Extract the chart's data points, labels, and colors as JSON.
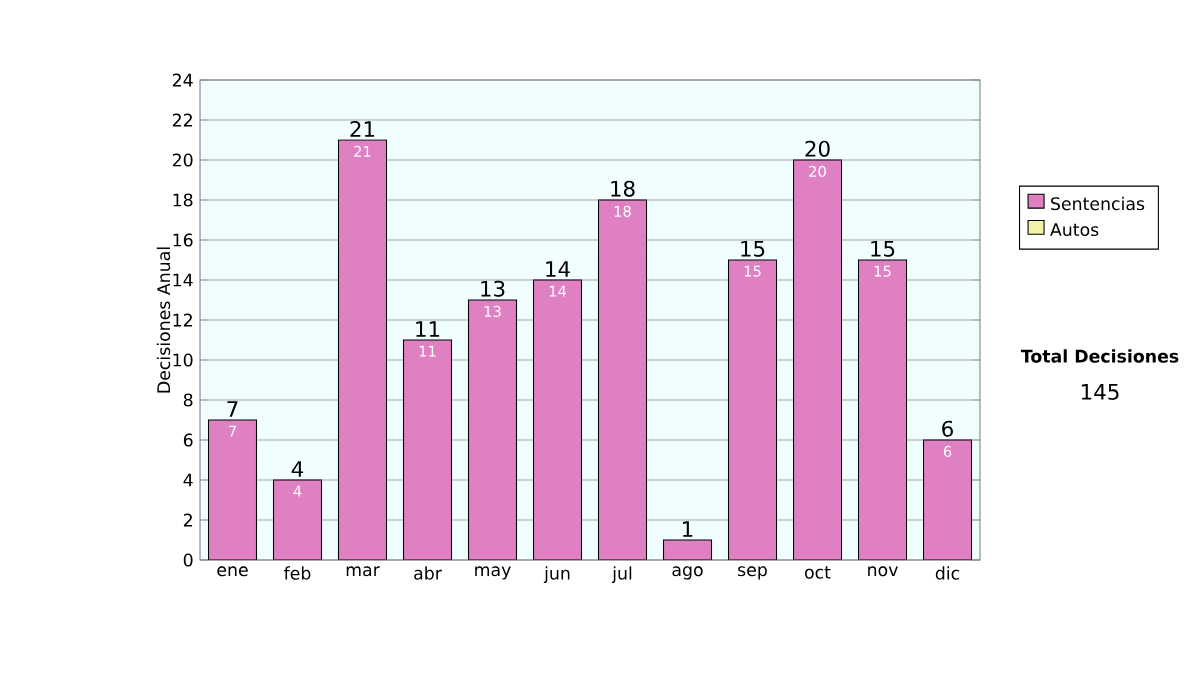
{
  "chart_data": {
    "type": "bar",
    "ylabel": "Decisiones Anual",
    "categories": [
      "ene",
      "feb",
      "mar",
      "abr",
      "may",
      "jun",
      "jul",
      "ago",
      "sep",
      "oct",
      "nov",
      "dic"
    ],
    "series": [
      {
        "name": "Sentencias",
        "color": "#df80c2",
        "values": [
          7,
          4,
          21,
          11,
          13,
          14,
          18,
          1,
          15,
          20,
          15,
          6
        ],
        "value_labels": [
          "7",
          "4",
          "21",
          "11",
          "13",
          "14",
          "18",
          null,
          "15",
          "20",
          "15",
          "6"
        ]
      },
      {
        "name": "Autos",
        "color": "#f2f2a6",
        "values": [
          null,
          null,
          null,
          null,
          null,
          null,
          null,
          null,
          null,
          null,
          null,
          null
        ]
      }
    ],
    "stacked": true,
    "totals": [
      "7",
      "4",
      "21",
      "11",
      "13",
      "14",
      "18",
      "1",
      "15",
      "20",
      "15",
      "6"
    ],
    "ylim": [
      0,
      24
    ],
    "yticks": [
      0,
      2,
      4,
      6,
      8,
      10,
      12,
      14,
      16,
      18,
      20,
      22,
      24
    ],
    "grid": "y",
    "legend": "right",
    "annotations": [
      "Total Decisiones",
      "145"
    ]
  }
}
